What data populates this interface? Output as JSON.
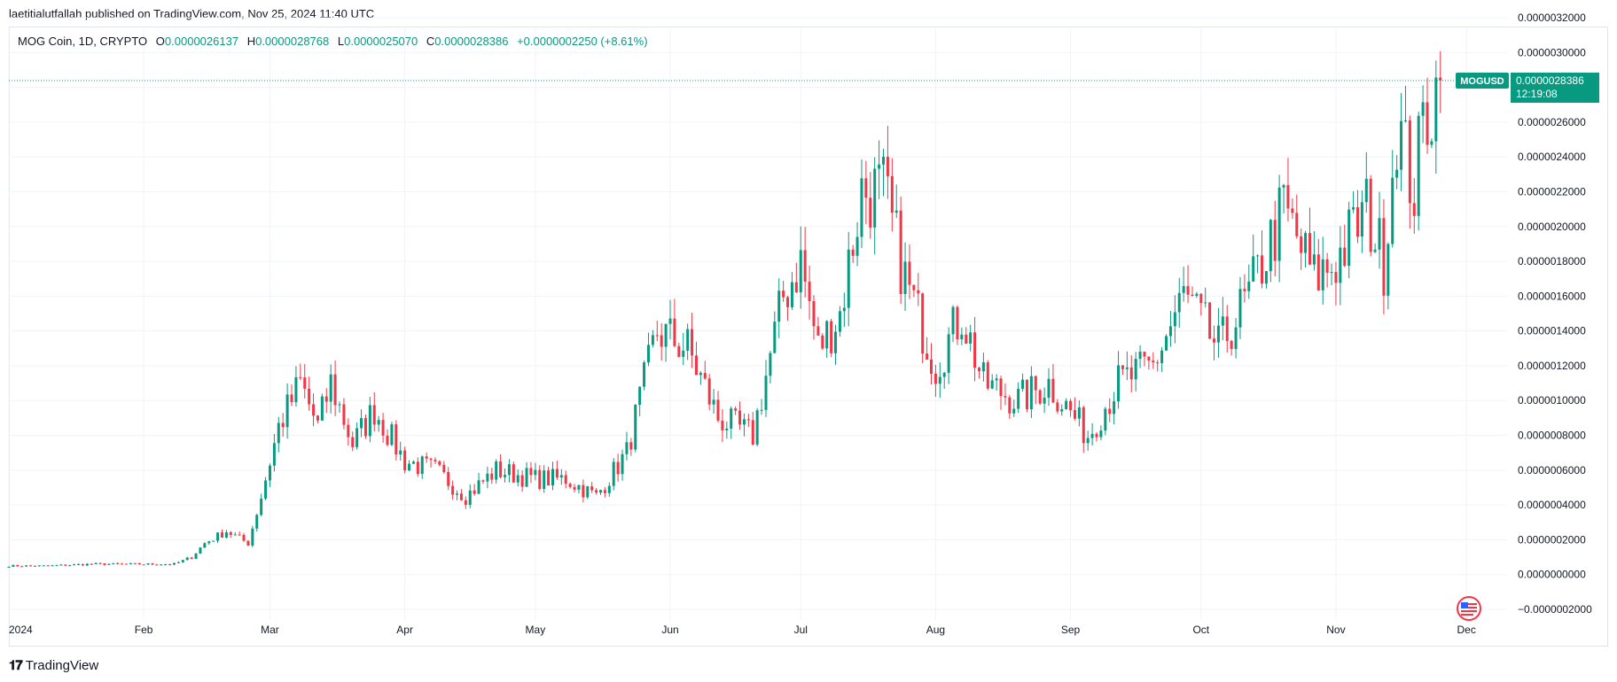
{
  "header": {
    "published_by": "laetitialutfallah published on TradingView.com, Nov 25, 2024 11:40 UTC"
  },
  "legend": {
    "symbol": "MOG Coin, 1D, CRYPTO",
    "o_label": "O",
    "o_value": "0.0000026137",
    "h_label": "H",
    "h_value": "0.0000028768",
    "l_label": "L",
    "l_value": "0.0000025070",
    "c_label": "C",
    "c_value": "0.0000028386",
    "change": "+0.0000002250 (+8.61%)"
  },
  "price_tag": {
    "ticker": "MOGUSD",
    "price": "0.0000028386",
    "countdown": "12:19:08"
  },
  "footer": {
    "brand": "TradingView"
  },
  "colors": {
    "up": "#089981",
    "down": "#f23645",
    "grid": "#f0f3fa",
    "axis_text": "#131722",
    "tag_bg": "#089981"
  },
  "chart_data": {
    "type": "candlestick",
    "title": "",
    "xlabel": "",
    "ylabel": "",
    "ylim": [
      -2e-07,
      3.2e-06
    ],
    "y_ticks": [
      "0.0000032000",
      "0.0000030000",
      "0.0000028000",
      "0.0000026000",
      "0.0000024000",
      "0.0000022000",
      "0.0000020000",
      "0.0000018000",
      "0.0000016000",
      "0.0000014000",
      "0.0000012000",
      "0.0000010000",
      "0.0000008000",
      "0.0000006000",
      "0.0000004000",
      "0.0000002000",
      "0.0000000000",
      "−0.0000002000"
    ],
    "y_tick_values": [
      3.2e-06,
      3e-06,
      2.8e-06,
      2.6e-06,
      2.4e-06,
      2.2e-06,
      2e-06,
      1.8e-06,
      1.6e-06,
      1.4e-06,
      1.2e-06,
      1e-06,
      8e-07,
      6e-07,
      4e-07,
      2e-07,
      0,
      -2e-07
    ],
    "x_ticks": [
      "2024",
      "Feb",
      "Mar",
      "Apr",
      "May",
      "Jun",
      "Jul",
      "Aug",
      "Sep",
      "Oct",
      "Nov",
      "Dec"
    ],
    "x_tick_dates": [
      "2024-01-01",
      "2024-02-01",
      "2024-03-01",
      "2024-04-01",
      "2024-05-01",
      "2024-06-01",
      "2024-07-01",
      "2024-08-01",
      "2024-09-01",
      "2024-10-01",
      "2024-11-01",
      "2024-12-01"
    ],
    "first_date": "2024-01-01",
    "last_close": 2.8386e-06,
    "grid": true,
    "anchors": [
      [
        "2024-01-01",
        5e-08
      ],
      [
        "2024-01-10",
        5e-08
      ],
      [
        "2024-01-20",
        6e-08
      ],
      [
        "2024-02-01",
        6e-08
      ],
      [
        "2024-02-08",
        6e-08
      ],
      [
        "2024-02-12",
        1e-07
      ],
      [
        "2024-02-15",
        1.8e-07
      ],
      [
        "2024-02-20",
        2.5e-07
      ],
      [
        "2024-02-25",
        1.8e-07
      ],
      [
        "2024-02-28",
        4.5e-07
      ],
      [
        "2024-03-03",
        8.5e-07
      ],
      [
        "2024-03-08",
        1.1e-06
      ],
      [
        "2024-03-12",
        8.5e-07
      ],
      [
        "2024-03-15",
        1.1e-06
      ],
      [
        "2024-03-20",
        7.5e-07
      ],
      [
        "2024-03-25",
        9.5e-07
      ],
      [
        "2024-04-01",
        6.5e-07
      ],
      [
        "2024-04-08",
        6e-07
      ],
      [
        "2024-04-15",
        4.5e-07
      ],
      [
        "2024-04-22",
        6e-07
      ],
      [
        "2024-05-01",
        5.5e-07
      ],
      [
        "2024-05-08",
        5.5e-07
      ],
      [
        "2024-05-15",
        4.5e-07
      ],
      [
        "2024-05-22",
        7e-07
      ],
      [
        "2024-05-29",
        1.4e-06
      ],
      [
        "2024-06-05",
        1.3e-06
      ],
      [
        "2024-06-12",
        9e-07
      ],
      [
        "2024-06-20",
        8e-07
      ],
      [
        "2024-06-27",
        1.6e-06
      ],
      [
        "2024-07-01",
        1.8e-06
      ],
      [
        "2024-07-05",
        1.3e-06
      ],
      [
        "2024-07-10",
        1.5e-06
      ],
      [
        "2024-07-15",
        2.2e-06
      ],
      [
        "2024-07-20",
        2.2e-06
      ],
      [
        "2024-07-25",
        1.7e-06
      ],
      [
        "2024-08-01",
        1.2e-06
      ],
      [
        "2024-08-07",
        1.5e-06
      ],
      [
        "2024-08-12",
        1.1e-06
      ],
      [
        "2024-08-20",
        1e-06
      ],
      [
        "2024-08-27",
        1.1e-06
      ],
      [
        "2024-09-05",
        8e-07
      ],
      [
        "2024-09-12",
        1.1e-06
      ],
      [
        "2024-09-20",
        1.2e-06
      ],
      [
        "2024-09-27",
        1.6e-06
      ],
      [
        "2024-10-05",
        1.3e-06
      ],
      [
        "2024-10-12",
        1.6e-06
      ],
      [
        "2024-10-20",
        2.1e-06
      ],
      [
        "2024-10-27",
        1.7e-06
      ],
      [
        "2024-11-01",
        1.8e-06
      ],
      [
        "2024-11-08",
        2.1e-06
      ],
      [
        "2024-11-12",
        1.8e-06
      ],
      [
        "2024-11-15",
        2.6e-06
      ],
      [
        "2024-11-19",
        2.2e-06
      ],
      [
        "2024-11-21",
        2.6e-06
      ],
      [
        "2024-11-25",
        2.8386e-06
      ]
    ]
  }
}
